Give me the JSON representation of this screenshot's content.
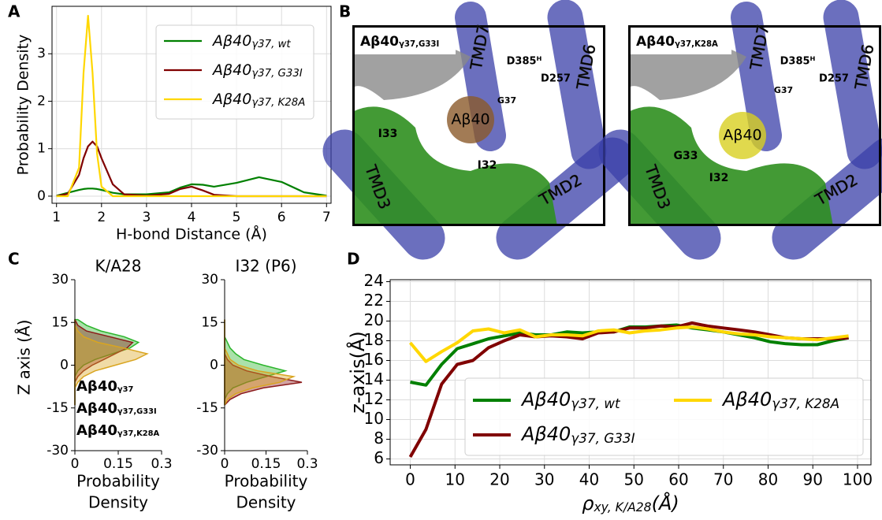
{
  "chart_data": [
    {
      "type": "line",
      "panel_label": "A",
      "xlabel": "H-bond Distance (Å)",
      "ylabel": "Probability Density",
      "xlim": [
        0.9,
        7.1
      ],
      "ylim": [
        -0.15,
        4.0
      ],
      "xticks": [
        1,
        2,
        3,
        4,
        5,
        6,
        7
      ],
      "yticks": [
        0,
        1,
        2,
        3
      ],
      "grid": true,
      "legend": "upper right",
      "x": [
        1,
        1.25,
        1.5,
        1.6,
        1.7,
        1.8,
        1.9,
        2,
        2.25,
        2.5,
        3,
        3.5,
        3.75,
        4,
        4.25,
        4.5,
        5,
        5.5,
        6,
        6.5,
        7
      ],
      "series": [
        {
          "name": "Aβ40",
          "subscript": "γ37, wt",
          "color": "#008000",
          "values": [
            0.01,
            0.07,
            0.13,
            0.15,
            0.16,
            0.16,
            0.15,
            0.13,
            0.07,
            0.04,
            0.04,
            0.08,
            0.18,
            0.25,
            0.24,
            0.2,
            0.28,
            0.4,
            0.3,
            0.08,
            0.01
          ]
        },
        {
          "name": "Aβ40",
          "subscript": "γ37, G33I",
          "color": "#800000",
          "values": [
            0,
            0.05,
            0.45,
            0.8,
            1.05,
            1.15,
            1.05,
            0.8,
            0.25,
            0.04,
            0.01,
            0.05,
            0.15,
            0.2,
            0.12,
            0.03,
            0,
            0,
            0,
            0,
            0
          ]
        },
        {
          "name": "Aβ40",
          "subscript": "γ37, K28A",
          "color": "#ffd700",
          "values": [
            0,
            0,
            0.6,
            2.6,
            3.8,
            2.6,
            0.9,
            0.2,
            0,
            0,
            0,
            0,
            0,
            0,
            0,
            0,
            0,
            0,
            0,
            0,
            0
          ]
        }
      ]
    },
    {
      "type": "image",
      "panel_label": "B",
      "images": [
        {
          "title": "Aβ40",
          "title_sub": "γ37,G33I",
          "labels": [
            "TMD7",
            "D385ᴴ",
            "D257",
            "TMD6",
            "G37",
            "Aβ40",
            "I33",
            "I32",
            "TMD3",
            "TMD2"
          ]
        },
        {
          "title": "Aβ40",
          "title_sub": "γ37,K28A",
          "labels": [
            "TMD7",
            "D385ᴴ",
            "G37",
            "D257",
            "TMD6",
            "Aβ40",
            "G33",
            "I32",
            "TMD3",
            "TMD2"
          ]
        }
      ]
    },
    {
      "type": "density",
      "panel_label": "C",
      "title": "K/A28",
      "ylabel": "Z axis (Å)",
      "xlabel": [
        "Probability",
        "Density"
      ],
      "xlim": [
        0,
        0.3
      ],
      "ylim": [
        -30,
        30
      ],
      "xticks": [
        0,
        0.15,
        0.3
      ],
      "yticks": [
        -30,
        -15,
        0,
        15,
        30
      ],
      "z": [
        -14,
        -12,
        -10,
        -8,
        -6,
        -4,
        -2,
        0,
        2,
        4,
        6,
        8,
        10,
        12,
        14,
        16
      ],
      "annotations": [
        {
          "text": "Aβ40",
          "sub": "γ37",
          "color": "#2bb52b"
        },
        {
          "text": "Aβ40",
          "sub": "γ37,G33I",
          "color": "#8b1a1a"
        },
        {
          "text": "Aβ40",
          "sub": "γ37,K28A",
          "color": "#d9a520"
        }
      ],
      "series": [
        {
          "color": "#2bb52b",
          "values": [
            0,
            0,
            0,
            0,
            0,
            0,
            0.01,
            0.03,
            0.07,
            0.13,
            0.19,
            0.22,
            0.17,
            0.09,
            0.04,
            0.01
          ]
        },
        {
          "color": "#8b1a1a",
          "values": [
            0,
            0,
            0,
            0,
            0,
            0.01,
            0.03,
            0.06,
            0.1,
            0.14,
            0.18,
            0.2,
            0.12,
            0.04,
            0.01,
            0
          ]
        },
        {
          "color": "#d9a520",
          "values": [
            0,
            0,
            0,
            0,
            0.01,
            0.03,
            0.07,
            0.14,
            0.21,
            0.25,
            0.17,
            0.08,
            0.03,
            0.01,
            0,
            0
          ]
        }
      ]
    },
    {
      "type": "density",
      "title": "I32 (P6)",
      "xlabel": [
        "Probability",
        "Density"
      ],
      "xlim": [
        0,
        0.3
      ],
      "ylim": [
        -30,
        30
      ],
      "xticks": [
        0,
        0.15,
        0.3
      ],
      "yticks": [
        -30,
        -15,
        0,
        15,
        30
      ],
      "z": [
        -14,
        -12,
        -10,
        -8,
        -6,
        -4,
        -2,
        0,
        2,
        4,
        6,
        8,
        10,
        12,
        14,
        16
      ],
      "series": [
        {
          "color": "#2bb52b",
          "values": [
            0,
            0,
            0.01,
            0.03,
            0.08,
            0.15,
            0.22,
            0.14,
            0.07,
            0.04,
            0.02,
            0.01,
            0,
            0,
            0,
            0
          ]
        },
        {
          "color": "#8b1a1a",
          "values": [
            0,
            0.02,
            0.06,
            0.14,
            0.28,
            0.17,
            0.08,
            0.03,
            0.01,
            0,
            0,
            0,
            0,
            0,
            0,
            0
          ]
        },
        {
          "color": "#d9a520",
          "values": [
            0,
            0.01,
            0.04,
            0.1,
            0.2,
            0.25,
            0.12,
            0.05,
            0.02,
            0.01,
            0,
            0,
            0,
            0,
            0,
            0
          ]
        }
      ]
    },
    {
      "type": "line",
      "panel_label": "D",
      "xlabel": "ρ",
      "xlabel_sub": "xy, K/A28",
      "xlabel_end": "(Å)",
      "ylabel": "z-axis(Å)",
      "xlim": [
        -4.5,
        103
      ],
      "ylim": [
        5.4,
        24.2
      ],
      "xticks": [
        0,
        10,
        20,
        30,
        40,
        50,
        60,
        70,
        80,
        90,
        100
      ],
      "yticks": [
        6,
        8,
        10,
        12,
        14,
        16,
        18,
        20,
        22,
        24
      ],
      "grid": true,
      "legend": "lower right",
      "x": [
        0,
        3.5,
        7,
        10.5,
        14,
        17.5,
        21,
        24.5,
        28,
        31.5,
        35,
        38.5,
        42,
        45.5,
        49,
        52.5,
        56,
        59.5,
        63,
        66.5,
        70,
        73.5,
        77,
        80.5,
        84,
        87.5,
        91,
        94.5,
        98
      ],
      "series": [
        {
          "name": "Aβ40",
          "subscript": "γ37, wt",
          "color": "#008000",
          "values": [
            13.8,
            13.5,
            15.6,
            17.2,
            17.7,
            18.2,
            18.5,
            18.8,
            18.6,
            18.6,
            18.9,
            18.8,
            18.9,
            18.9,
            19.4,
            19.4,
            19.5,
            19.6,
            19.3,
            19.1,
            18.9,
            18.6,
            18.3,
            17.9,
            17.7,
            17.6,
            17.6,
            18.0,
            18.3
          ]
        },
        {
          "name": "Aβ40",
          "subscript": "γ37, G33I",
          "color": "#800000",
          "values": [
            6.2,
            9.0,
            13.6,
            15.6,
            16.0,
            17.3,
            18.0,
            18.6,
            18.4,
            18.5,
            18.4,
            18.2,
            18.8,
            18.9,
            19.3,
            19.3,
            19.5,
            19.4,
            19.8,
            19.5,
            19.3,
            19.1,
            18.9,
            18.6,
            18.3,
            18.2,
            18.2,
            18.2,
            18.3
          ]
        },
        {
          "name": "Aβ40",
          "subscript": "γ37, K28A",
          "color": "#ffd700",
          "values": [
            17.8,
            15.9,
            16.9,
            17.8,
            19.0,
            19.2,
            18.8,
            19.1,
            18.4,
            18.6,
            18.6,
            18.5,
            19.0,
            19.1,
            18.8,
            19.0,
            19.1,
            19.3,
            19.4,
            19.2,
            18.9,
            18.7,
            18.6,
            18.4,
            18.3,
            18.2,
            18.1,
            18.3,
            18.5
          ]
        }
      ]
    }
  ]
}
